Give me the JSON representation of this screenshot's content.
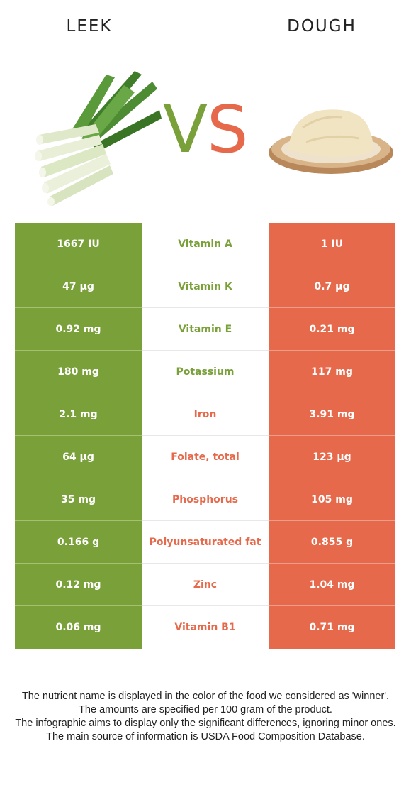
{
  "header": {
    "left_food": "LEEK",
    "right_food": "DOUGH",
    "vs_v": "V",
    "vs_s": "S"
  },
  "colors": {
    "left_winner": "#7aa03a",
    "right_winner": "#e5694a",
    "background": "#ffffff"
  },
  "illustrations": {
    "left": "leek-bundle-icon",
    "right": "dough-on-board-icon"
  },
  "rows": [
    {
      "left": "1667 IU",
      "nutrient": "Vitamin A",
      "right": "1 IU",
      "winner": "left"
    },
    {
      "left": "47 µg",
      "nutrient": "Vitamin K",
      "right": "0.7 µg",
      "winner": "left"
    },
    {
      "left": "0.92 mg",
      "nutrient": "Vitamin E",
      "right": "0.21 mg",
      "winner": "left"
    },
    {
      "left": "180 mg",
      "nutrient": "Potassium",
      "right": "117 mg",
      "winner": "left"
    },
    {
      "left": "2.1 mg",
      "nutrient": "Iron",
      "right": "3.91 mg",
      "winner": "right"
    },
    {
      "left": "64 µg",
      "nutrient": "Folate, total",
      "right": "123 µg",
      "winner": "right"
    },
    {
      "left": "35 mg",
      "nutrient": "Phosphorus",
      "right": "105 mg",
      "winner": "right"
    },
    {
      "left": "0.166 g",
      "nutrient": "Polyunsaturated fat",
      "right": "0.855 g",
      "winner": "right"
    },
    {
      "left": "0.12 mg",
      "nutrient": "Zinc",
      "right": "1.04 mg",
      "winner": "right"
    },
    {
      "left": "0.06 mg",
      "nutrient": "Vitamin B1",
      "right": "0.71 mg",
      "winner": "right"
    }
  ],
  "footer": {
    "line1": "The nutrient name is displayed in the color of the food we considered as 'winner'.",
    "line2": "The amounts are specified per 100 gram of the product.",
    "line3": "The infographic aims to display only the significant differences, ignoring minor ones.",
    "line4": "The main source of information is USDA Food Composition Database."
  }
}
